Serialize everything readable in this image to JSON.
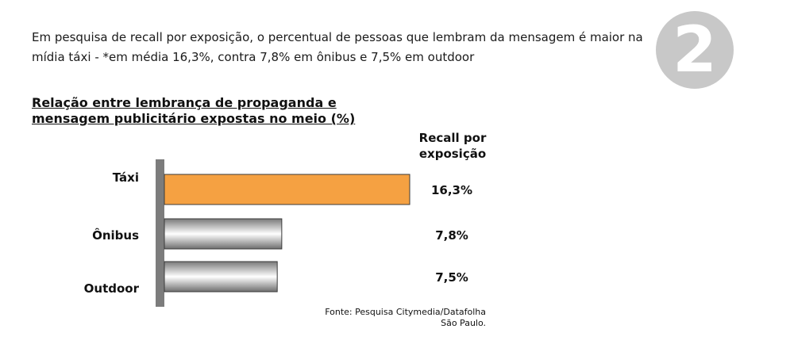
{
  "intro": {
    "line1": "Em pesquisa de recall por exposição, o percentual de pessoas que lembram da mensagem é maior na",
    "line2": "mídia táxi - *em média 16,3%, contra 7,8% em ônibus e 7,5% em outdoor"
  },
  "badge": {
    "number": "2",
    "color": "#c8c8c8"
  },
  "chart_data": {
    "type": "bar",
    "orientation": "horizontal",
    "title_line1": "Relação entre lembrança de propaganda e",
    "title_line2": "mensagem publicitário expostas no meio (%)",
    "value_column_header_line1": "Recall por",
    "value_column_header_line2": "exposição",
    "categories": [
      "Táxi",
      "Ônibus",
      "Outdoor"
    ],
    "values": [
      16.3,
      7.8,
      7.5
    ],
    "value_labels": [
      "16,3%",
      "7,8%",
      "7,5%"
    ],
    "bar_colors": [
      "#f5a142",
      "#a8a8a8",
      "#a8a8a8"
    ],
    "xlim": [
      0,
      16.3
    ],
    "grid": false,
    "legend": "none"
  },
  "source": {
    "line1": "Fonte: Pesquisa Citymedia/Datafolha",
    "line2": "São Paulo."
  }
}
